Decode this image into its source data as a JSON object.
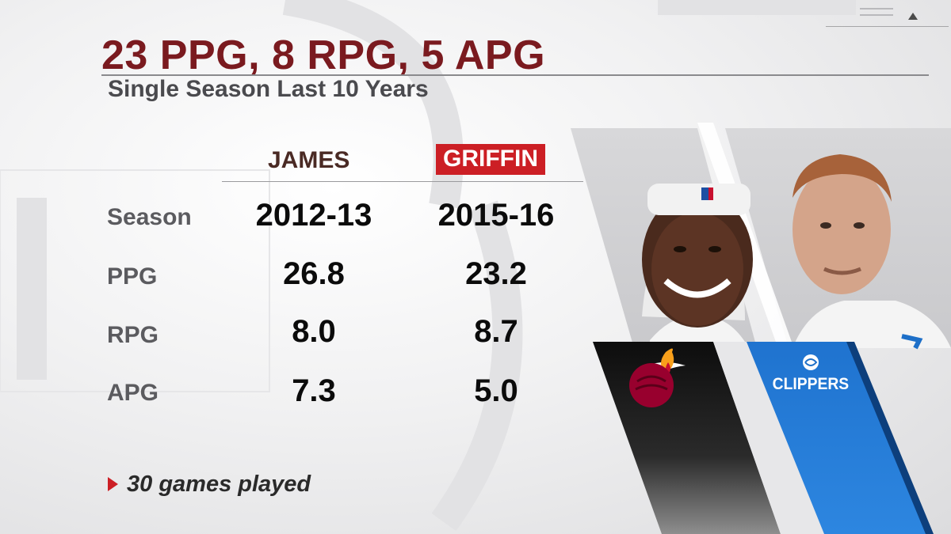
{
  "title": "23 PPG, 8 RPG, 5 APG",
  "subtitle": "Single Season Last 10 Years",
  "columns": {
    "james": "JAMES",
    "griffin": "GRIFFIN"
  },
  "rows": [
    {
      "label": "Season",
      "james": "2012-13",
      "griffin": "2015-16"
    },
    {
      "label": "PPG",
      "james": "26.8",
      "griffin": "23.2"
    },
    {
      "label": "RPG",
      "james": "8.0",
      "griffin": "8.7"
    },
    {
      "label": "APG",
      "james": "7.3",
      "griffin": "5.0"
    }
  ],
  "footnote": "30 games played",
  "teams": {
    "griffin_logo_text": "CLIPPERS"
  },
  "colors": {
    "title": "#7a1a1f",
    "griffin_badge": "#cc1f25",
    "heat_red": "#98002e",
    "clippers_blue": "#1d6fc8"
  },
  "icons": [
    "menu-icon",
    "up-arrow-icon",
    "footnote-arrow-icon",
    "heat-logo-icon",
    "clippers-logo-icon"
  ]
}
